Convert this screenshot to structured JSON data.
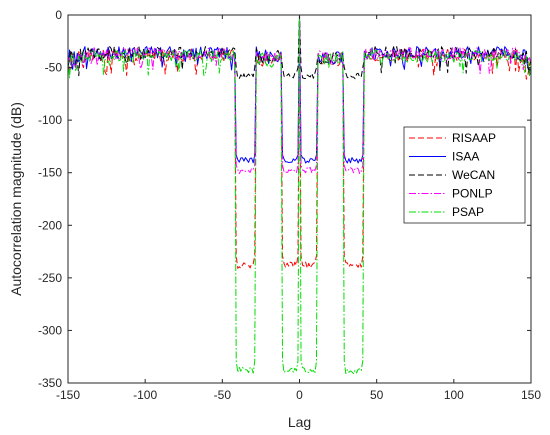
{
  "chart_data": {
    "type": "line",
    "title": "",
    "xlabel": "Lag",
    "ylabel": "Autocorrelation magnitude (dB)",
    "xlim": [
      -150,
      150
    ],
    "ylim": [
      -350,
      0
    ],
    "xticks": [
      -150,
      -100,
      -50,
      0,
      50,
      100,
      150
    ],
    "yticks": [
      0,
      -50,
      -100,
      -150,
      -200,
      -250,
      -300,
      -350
    ],
    "grid": false,
    "legend_position": "right",
    "notch_regions": [
      [
        -41,
        -29
      ],
      [
        -11,
        -1
      ],
      [
        1,
        11
      ],
      [
        29,
        41
      ]
    ],
    "series": [
      {
        "name": "RISAAP",
        "color": "#ff0000",
        "dash": "dashed",
        "sidelobe_level_db": -32,
        "notch_level_db": -238,
        "notch_edge_db": -229
      },
      {
        "name": "ISAA",
        "color": "#0000ff",
        "dash": "solid",
        "sidelobe_level_db": -30,
        "notch_level_db": -138,
        "notch_edge_db": -133
      },
      {
        "name": "WeCAN",
        "color": "#000000",
        "dash": "dashed",
        "sidelobe_level_db": -30,
        "notch_level_db": -58,
        "notch_edge_db": -50
      },
      {
        "name": "PONLP",
        "color": "#ff00ff",
        "dash": "dashdot",
        "sidelobe_level_db": -31,
        "notch_level_db": -148,
        "notch_edge_db": -143
      },
      {
        "name": "PSAP",
        "color": "#00dd00",
        "dash": "dashdot",
        "sidelobe_level_db": -33,
        "notch_level_db": -338,
        "notch_edge_db": -329
      }
    ]
  }
}
